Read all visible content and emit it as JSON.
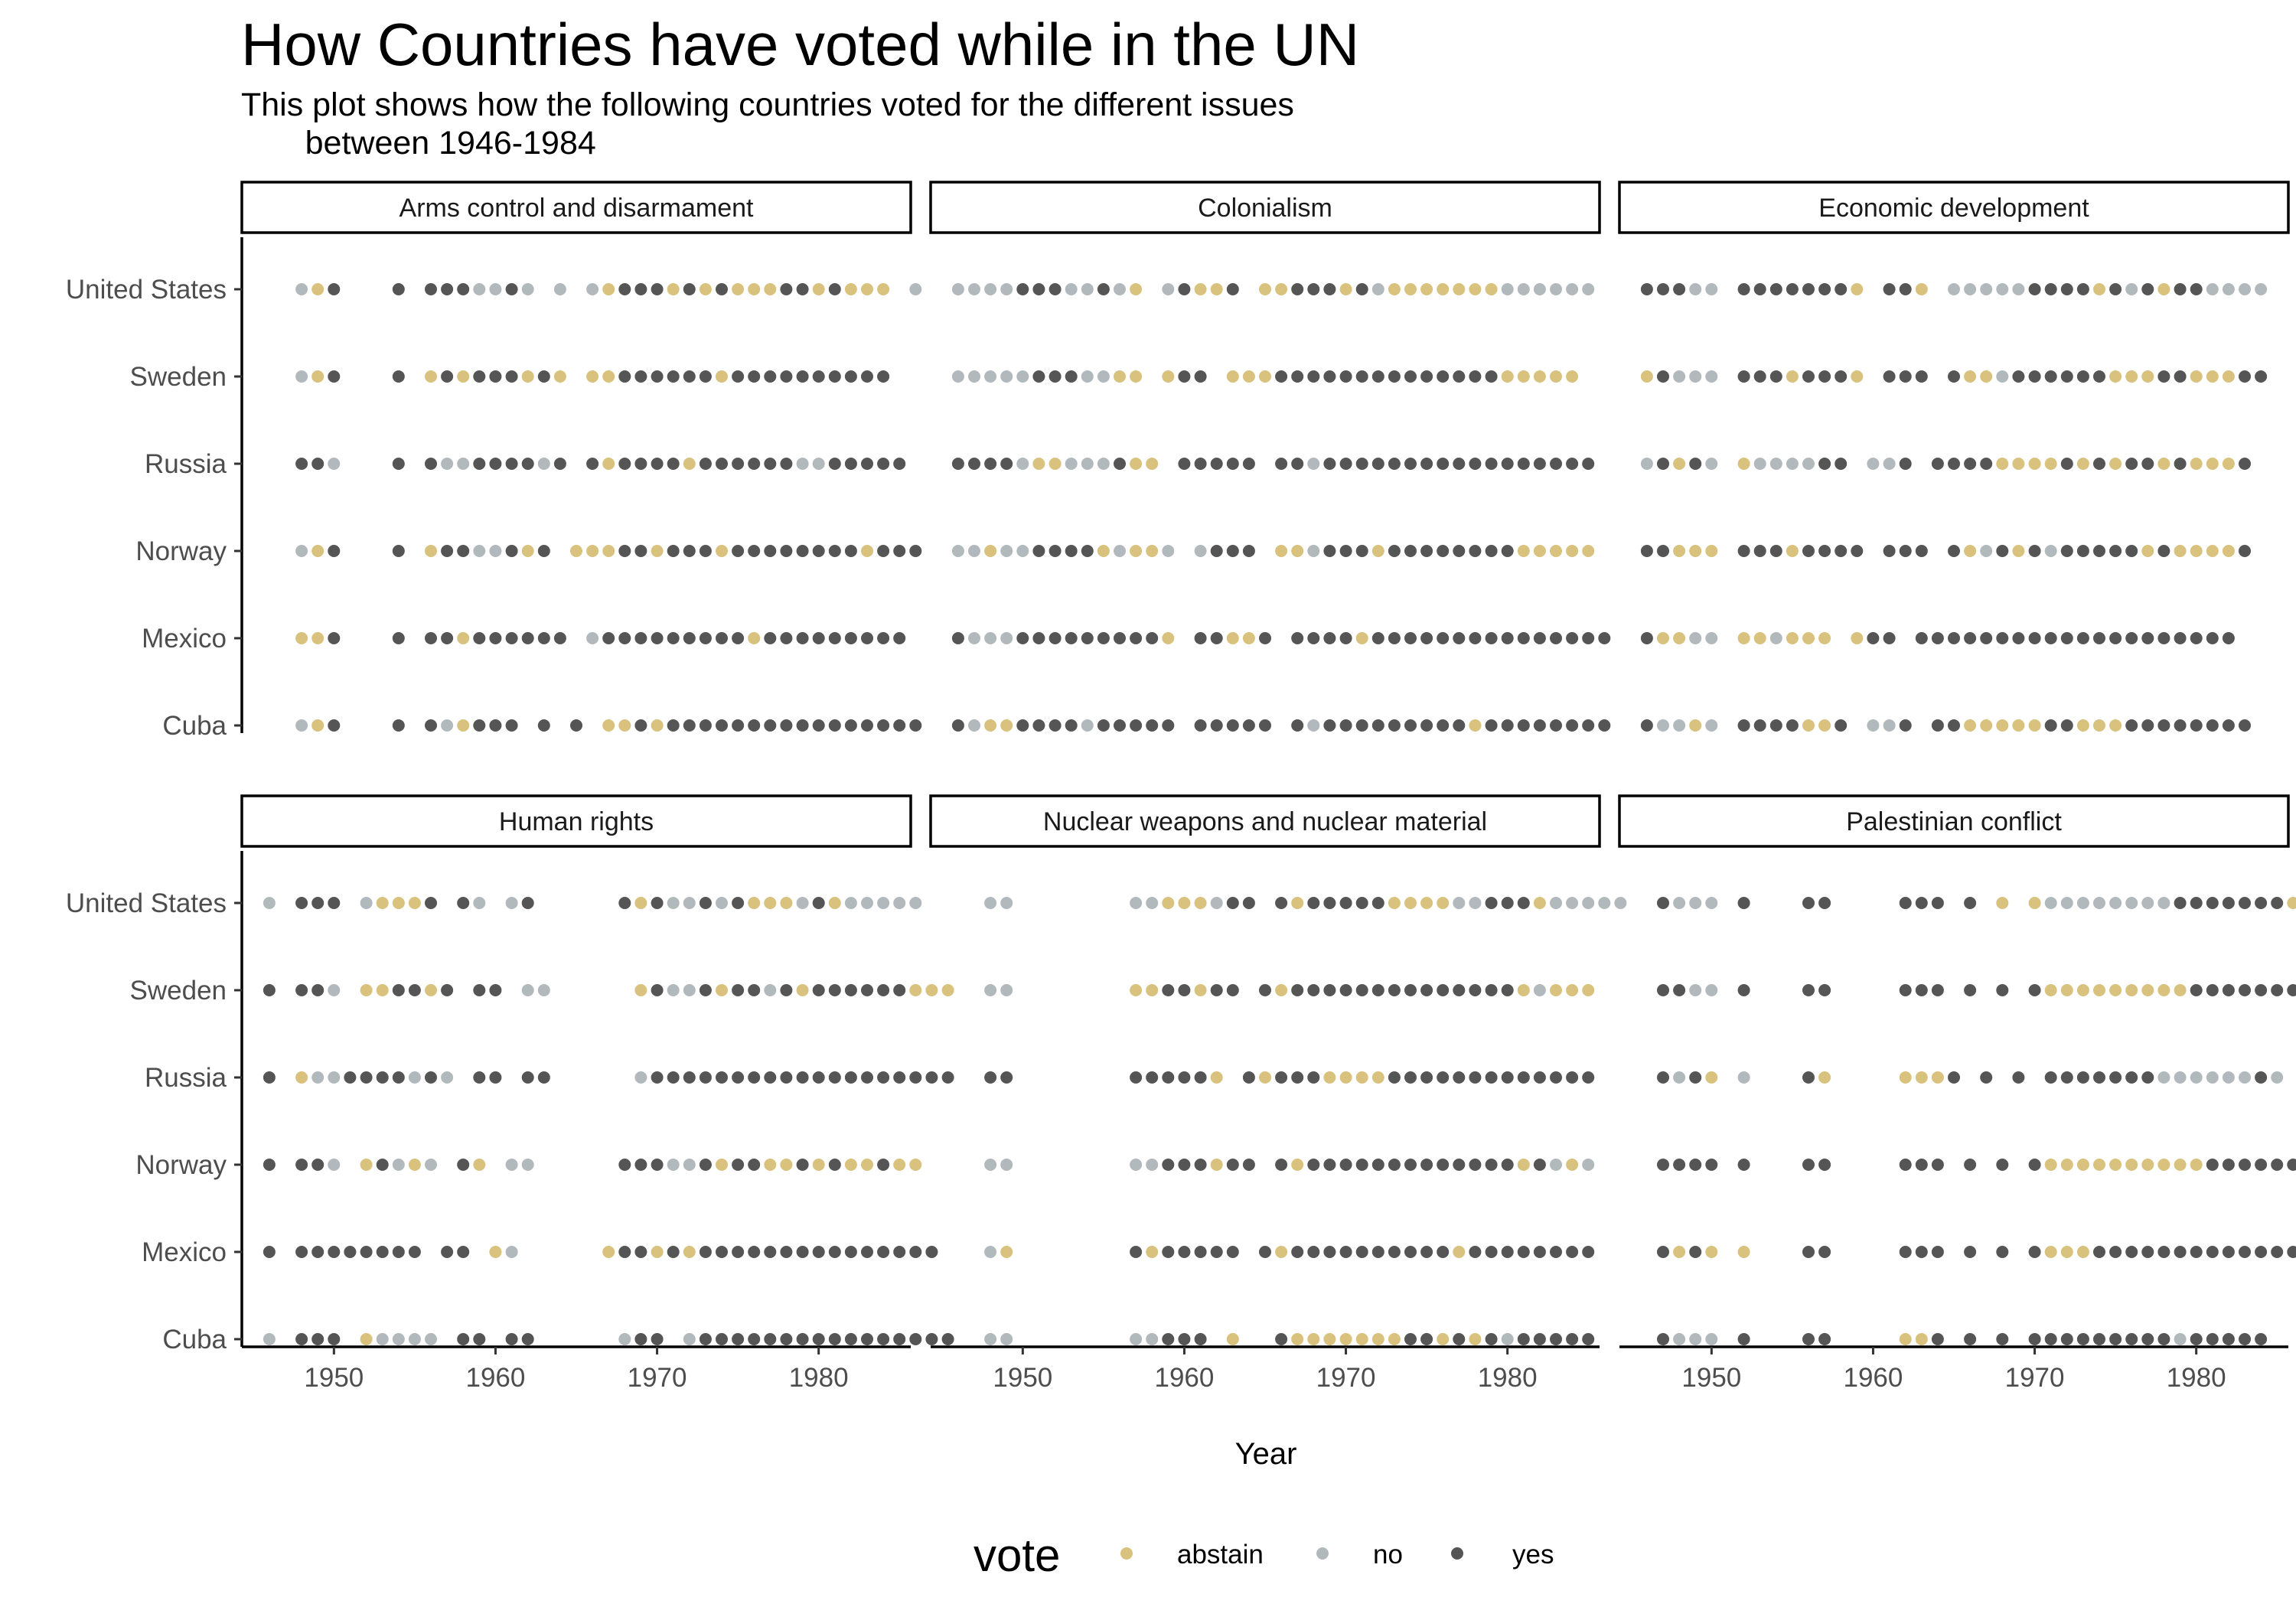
{
  "title": "How Countries have voted while in the UN",
  "subtitle": "This plot shows how the following countries voted for the different issues\n       between 1946-1984",
  "colors": {
    "abstain": "#D9C27E",
    "no": "#B2B9BD",
    "yes": "#555555"
  },
  "chart_data": {
    "type": "scatter",
    "title": "How Countries have voted while in the UN",
    "subtitle": "This plot shows how the following countries voted for the different issues between 1946-1984",
    "xlabel": "Year",
    "ylabel": "",
    "xlim": [
      1944.3,
      1985.7
    ],
    "x_ticks": [
      1950,
      1960,
      1970,
      1980
    ],
    "countries": [
      "United States",
      "Sweden",
      "Russia",
      "Norway",
      "Mexico",
      "Cuba"
    ],
    "grid": false,
    "legend": {
      "title": "vote",
      "position": "bottom",
      "entries": [
        "abstain",
        "no",
        "yes"
      ]
    },
    "codes": {
      "a": "abstain",
      "n": "no",
      "y": "yes",
      ".": "no vote recorded"
    },
    "years_start": 1946,
    "facets": [
      {
        "name": "Arms control and disarmament",
        "rows": {
          "United States": "..nay...y.yyynnyn.n.nayyyayayaaayyayaaa.n",
          "Sweden": "..nay...y.ayayyyaya.aayyyyyyayyyyyyyyyy",
          "Russia": "..yyn...y.ynnyyyyny.yayyyyayyyyyynnyyyyy",
          "Norway": "..nay...y.ayynnyay.aaayyayyyayyyyyyyyayyy",
          "Mexico": "..aay...y.yyayyyyyy.nyyyyyyyyyayyyyyyyyy",
          "Cuba": "..nay...y.ynayyy.y.y.aayayyyyyyyyyyyyyyyy"
        }
      },
      {
        "name": "Colonialism",
        "rows": {
          "United States": "nnnnyyynnyna.nyaay.aayyyaynaaaaaaannnnnn",
          "Sweden": "nnnnnyyynnaa.ayy.aaayyyyyyyyyyyyyyaaaaa",
          "Russia": "yyyynaannnyaa.yyyyy.yynyyyyyyyyyyyyyyyyy",
          "Norway": "nnannyyyyanaan.nyyy.aanyyyayyyyyyyyaaaaa",
          "Mexico": "ynnnyyyyyyyyya.yyaay.yyyyayyyyyyyyyyyyyyy",
          "Cuba": "ynaayyyynyyyyy.yyyyy.ynyyyyyyyyyayyyyyyyy"
        }
      },
      {
        "name": "Economic development",
        "rows": {
          "United States": "yyynn.yyyyyyya.yya.nnnnnyyyyaynyayynnnn",
          "Sweden": "aynnn.yyyayyya.yyy.yaanyyyyyyaaayyaaayy",
          "Russia": "nyayn.annnnyy.nny.yyyyaaaayayayyayaaay",
          "Norway": "yyaaa.yyyayyyy.yyy.yanyaynyyyyyayaaaay",
          "Mexico": "yaann.aanaaa.ayy.yyyyyyyyyyyyyyyyyyyy",
          "Cuba": "ynnan.yyyyaay.nny.yyaaaaayyaaayyyyyyyy"
        }
      },
      {
        "name": "Human rights",
        "rows": {
          "United States": "n.yyy.naaay.yn.ny.....yaynnynyaaanyannnnn",
          "Sweden": "y.yyn.aayyay.yy.nn.....aynnyayynyayyyyyyaaa",
          "Russia": "y.annyyyynyn.yy.yy.....nyyyyyyyyyyyyyyyyyyy",
          "Norway": "y.yyn.aynan.ya.nn.....yyynnyayyaayayaayaa",
          "Mexico": "y.yyyyyyyy.yy.an.....ayyayayyyyyyyyyyyyyyy",
          "Cuba": "n.yyy.annnn.yy.yy.....nyy.nyyyyyyyyyyyyyyyy"
        }
      },
      {
        "name": "Nuclear weapons and nuclear material",
        "rows": {
          "United States": "..nn.......nnaaanyy.yayyyyyaaaannyyyannnnn",
          "Sweden": "..nn.......aayyayy.yayyyyyyyyyyyyyyanaaa",
          "Russia": "..yy.......yyyyya.yayyyaaaayyyyyyyyyyyyy",
          "Norway": "..nn.......nnyyyayy.yayyyyyyyyyyyyyaynan",
          "Mexico": "..na.......yayyyyy.yayyyyyyyyyyayyyyyyyy",
          "Cuba": "..nn.......nnyyy.a..yaaaaaaayyayaynyyyyy"
        }
      },
      {
        "name": "Palestinian conflict",
        "rows": {
          "United States": ".ynnn.y...yy....yyy.y.a.annnnnnnnyyyyyyyay",
          "Sweden": ".yynn.y...yy....yyy.y.y.yaaaaaaaaayyyyyyyy",
          "Russia": ".ynya.n...ya....aaay.y.y.yyyyyyynnnnnnyn",
          "Norway": ".yyyy.y...yy....yyy.y.y.yaaaaaaaaaayyyyyy",
          "Mexico": ".yaya.a...yy....yyy.y.y.yaaayyyyyyyyyyyyyy",
          "Cuba": ".ynnn.y...yy....aay.y.y.yyyyyyyyynyyyyy"
        }
      }
    ]
  }
}
